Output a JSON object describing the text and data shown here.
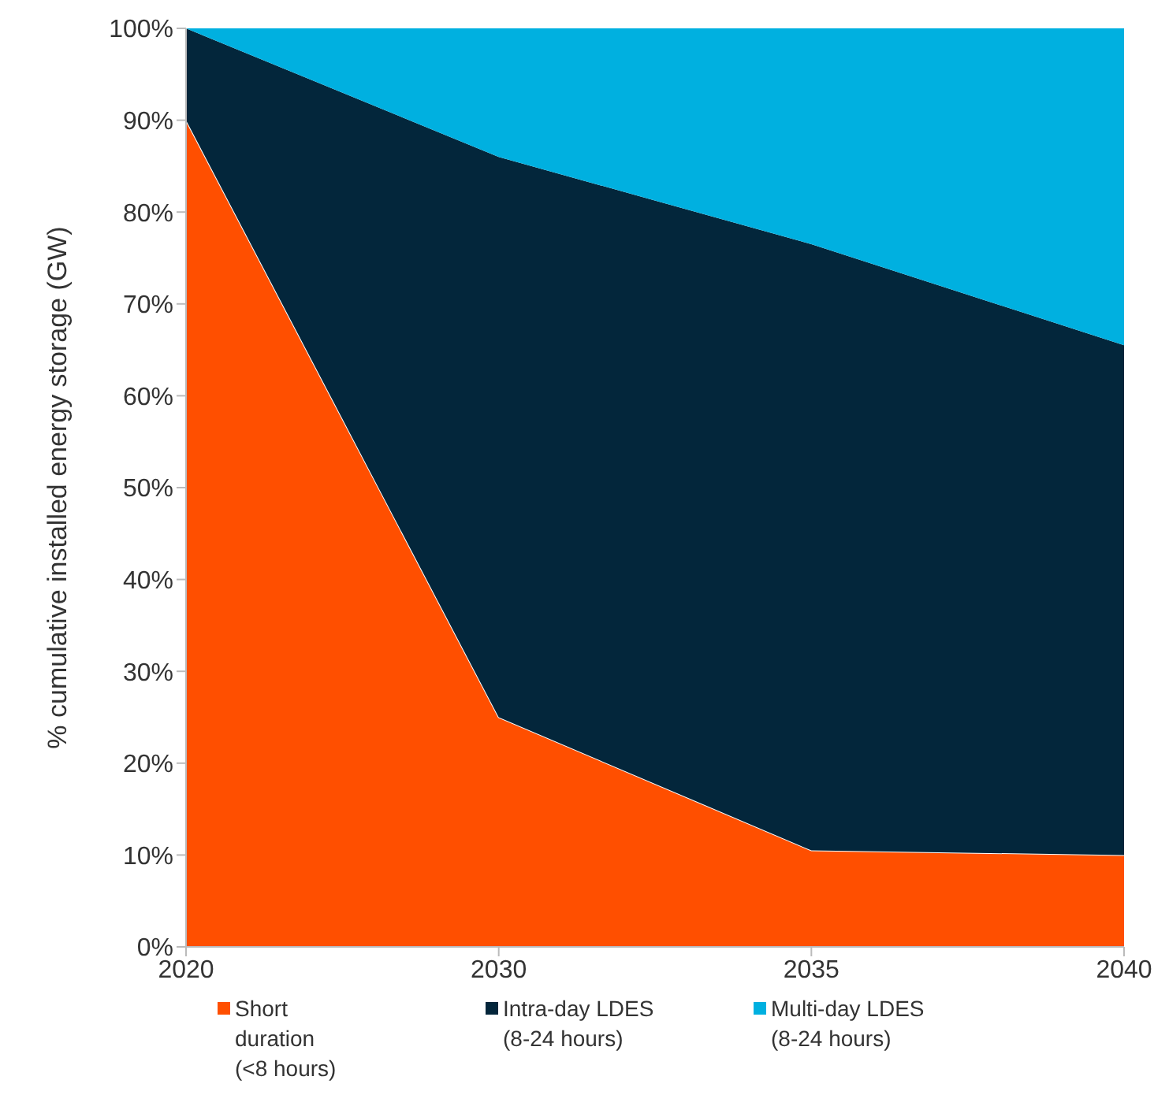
{
  "chart_data": {
    "type": "area",
    "stacked": true,
    "ylabel": "% cumulative installed energy storage (GW)",
    "categories": [
      "2020",
      "2030",
      "2035",
      "2040"
    ],
    "series": [
      {
        "name": "Short\nduration\n(<8 hours)",
        "color": "#ff4f00",
        "values": [
          90,
          25,
          10.5,
          10
        ]
      },
      {
        "name": "Intra-day LDES\n(8-24 hours)",
        "color": "#03263b",
        "values": [
          10,
          61,
          66,
          55.5
        ]
      },
      {
        "name": "Multi-day LDES\n(8-24 hours)",
        "color": "#00b0e0",
        "values": [
          0,
          14,
          23.5,
          34.5
        ]
      }
    ],
    "ylim": [
      0,
      100
    ],
    "yticks": [
      {
        "value": 0,
        "label": "0%"
      },
      {
        "value": 10,
        "label": "10%"
      },
      {
        "value": 20,
        "label": "20%"
      },
      {
        "value": 30,
        "label": "30%"
      },
      {
        "value": 40,
        "label": "40%"
      },
      {
        "value": 50,
        "label": "50%"
      },
      {
        "value": 60,
        "label": "60%"
      },
      {
        "value": 70,
        "label": "70%"
      },
      {
        "value": 80,
        "label": "80%"
      },
      {
        "value": 90,
        "label": "90%"
      },
      {
        "value": 100,
        "label": "100%"
      }
    ],
    "grid": false,
    "legend": "bottom"
  }
}
